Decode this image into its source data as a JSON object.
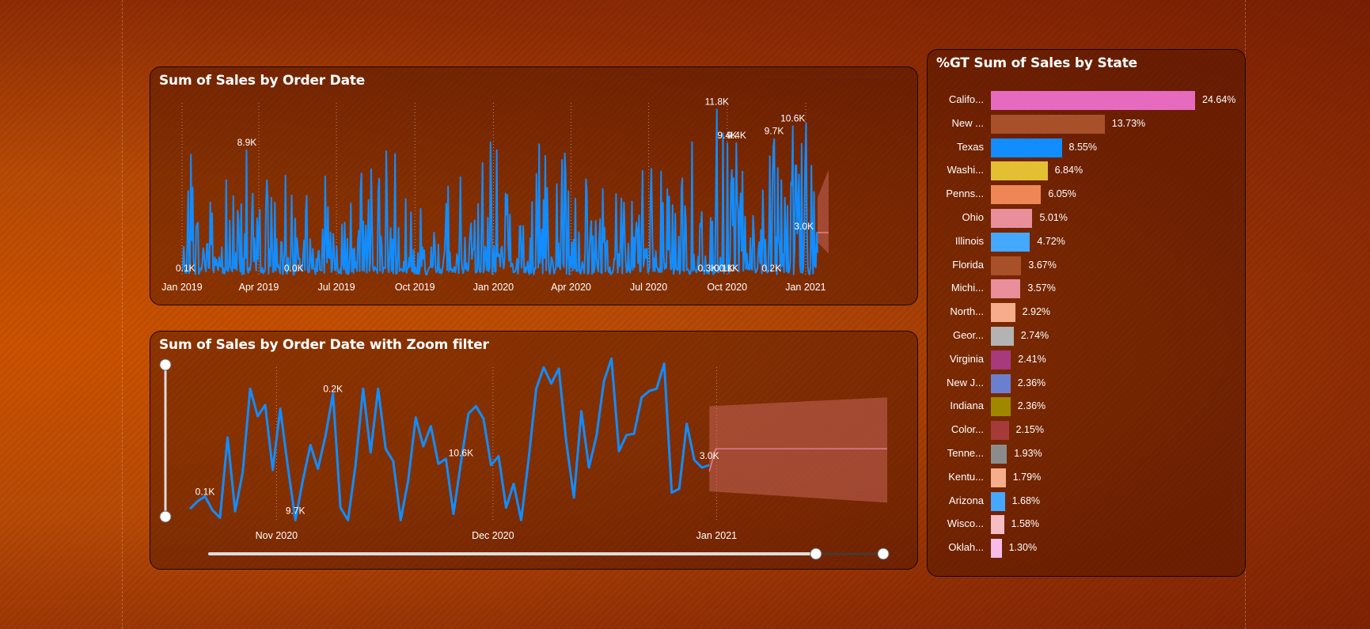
{
  "colors": {
    "line": "#118dff",
    "forecast": "#c4655a"
  },
  "chart_data": [
    {
      "type": "line",
      "title": "Sum of Sales by Order Date",
      "x_ticks": [
        "Jan 2019",
        "Apr 2019",
        "Jul 2019",
        "Oct 2019",
        "Jan 2020",
        "Apr 2020",
        "Jul 2020",
        "Oct 2020",
        "Jan 2021"
      ],
      "x_range": [
        "2019-01-01",
        "2021-01-15"
      ],
      "ylim": [
        0,
        12000
      ],
      "grid": "vertical dotted",
      "forecast_shown": true,
      "annotations": [
        {
          "date": "2019-01-05",
          "value": 100,
          "label": "0.1K"
        },
        {
          "date": "2019-03-18",
          "value": 8900,
          "label": "8.9K"
        },
        {
          "date": "2019-05-12",
          "value": 0,
          "label": "0.0K"
        },
        {
          "date": "2020-09-08",
          "value": 300,
          "label": "0.3K"
        },
        {
          "date": "2020-09-19",
          "value": 11800,
          "label": "11.8K"
        },
        {
          "date": "2020-09-27",
          "value": 100,
          "label": "0.1K"
        },
        {
          "date": "2020-10-01",
          "value": 9400,
          "label": "9.4K"
        },
        {
          "date": "2020-10-03",
          "value": 100,
          "label": "0.1K"
        },
        {
          "date": "2020-10-12",
          "value": 9400,
          "label": "9.4K"
        },
        {
          "date": "2020-11-22",
          "value": 200,
          "label": "0.2K"
        },
        {
          "date": "2020-11-25",
          "value": 9700,
          "label": "9.7K"
        },
        {
          "date": "2020-12-17",
          "value": 10600,
          "label": "10.6K"
        },
        {
          "date": "2020-12-30",
          "value": 3000,
          "label": "3.0K"
        }
      ]
    },
    {
      "type": "line",
      "title": "Sum of Sales by Order Date with Zoom filter",
      "x_ticks": [
        "Nov 2020",
        "Dec 2020",
        "Jan 2021"
      ],
      "x_range": [
        "2020-10-20",
        "2021-01-15"
      ],
      "ylim": [
        0,
        12000
      ],
      "grid": "vertical dotted",
      "forecast_shown": true,
      "series": [
        {
          "values": [
            1000,
            1600,
            2000,
            900,
            300,
            6700,
            800,
            3900,
            10600,
            8400,
            9300,
            4100,
            9000,
            4400,
            100,
            3300,
            6100,
            4200,
            6800,
            10200,
            1100,
            100,
            4500,
            10600,
            5500,
            10600,
            5800,
            4800,
            100,
            3300,
            8300,
            6000,
            7600,
            4600,
            5000,
            600,
            4700,
            8600,
            9200,
            8200,
            4500,
            5200,
            1100,
            3000,
            100,
            5000,
            10600,
            12300,
            11000,
            12200,
            6300,
            1900,
            8800,
            4300,
            6800,
            11200,
            13000,
            5600,
            6900,
            7000,
            9900,
            10400,
            10600,
            12600,
            2300,
            2600,
            7800,
            4900,
            4300,
            4500
          ]
        }
      ],
      "annotations": [
        {
          "label": "0.1K"
        },
        {
          "label": "9.7K"
        },
        {
          "label": "0.2K"
        },
        {
          "label": "10.6K"
        },
        {
          "label": "3.0K"
        }
      ]
    },
    {
      "type": "bar",
      "orientation": "horizontal",
      "title": "%GT Sum of Sales by State",
      "categories": [
        "Califo...",
        "New ...",
        "Texas",
        "Washi...",
        "Penns...",
        "Ohio",
        "Illinois",
        "Florida",
        "Michi...",
        "North...",
        "Geor...",
        "Virginia",
        "New J...",
        "Indiana",
        "Color...",
        "Tenne...",
        "Kentu...",
        "Arizona",
        "Wisco...",
        "Oklah..."
      ],
      "values": [
        24.64,
        13.73,
        8.55,
        6.84,
        6.05,
        5.01,
        4.72,
        3.67,
        3.57,
        2.92,
        2.74,
        2.41,
        2.36,
        2.36,
        2.15,
        1.93,
        1.79,
        1.68,
        1.58,
        1.3
      ],
      "value_labels": [
        "24.64%",
        "13.73%",
        "8.55%",
        "6.84%",
        "6.05%",
        "5.01%",
        "4.72%",
        "3.67%",
        "3.57%",
        "2.92%",
        "2.74%",
        "2.41%",
        "2.36%",
        "2.36%",
        "2.15%",
        "1.93%",
        "1.79%",
        "1.68%",
        "1.58%",
        "1.30%"
      ],
      "colors": [
        "#e66bbf",
        "#a8502a",
        "#118dff",
        "#e3c033",
        "#ee8656",
        "#e88f9b",
        "#44a8fc",
        "#a8502a",
        "#e88f9b",
        "#f5ad8c",
        "#b3b3b3",
        "#a63a7d",
        "#6b7fcf",
        "#a08700",
        "#a63a3a",
        "#8c8c8c",
        "#f5ad8c",
        "#44a8fc",
        "#f5bdc4",
        "#f7bde8"
      ]
    }
  ],
  "zoom_slider": {
    "start": 0.0,
    "end": 1.0
  },
  "time_slider": {
    "start": 0.0,
    "end": 0.9
  }
}
